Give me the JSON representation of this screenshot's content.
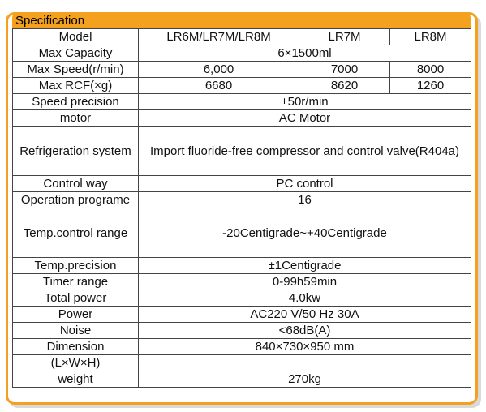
{
  "title": "Specification",
  "columns": [
    "Model",
    "LR6M/LR7M/LR8M",
    "LR7M",
    "LR8M"
  ],
  "rows": {
    "capacity": {
      "label": "Max Capacity",
      "value": "6×1500ml"
    },
    "speed": {
      "label": "Max Speed(r/min)",
      "v1": "6,000",
      "v2": "7000",
      "v3": "8000"
    },
    "rcf": {
      "label": "Max RCF(×g)",
      "v1": "6680",
      "v2": "8620",
      "v3": "1260"
    },
    "speed_precision": {
      "label": "Speed precision",
      "value": "±50r/min"
    },
    "motor": {
      "label": "motor",
      "value": "AC Motor"
    },
    "refrigeration": {
      "label": "Refrigeration system",
      "value": "Import fluoride-free compressor and control valve(R404a)"
    },
    "control": {
      "label": "Control way",
      "value": "PC control"
    },
    "programe": {
      "label": "Operation programe",
      "value": "16"
    },
    "temp_range": {
      "label": "Temp.control range",
      "value": "-20Centigrade~+40Centigrade"
    },
    "temp_precision": {
      "label": "Temp.precision",
      "value": "±1Centigrade"
    },
    "timer": {
      "label": "Timer range",
      "value": "0-99h59min"
    },
    "power_total": {
      "label": "Total power",
      "value": "4.0kw"
    },
    "power": {
      "label": "Power",
      "value": "AC220 V/50 Hz 30A"
    },
    "noise": {
      "label": "Noise",
      "value": "<68dB(A)"
    },
    "dimension": {
      "label": "Dimension",
      "label2": "(L×W×H)",
      "value": "840×730×950 mm"
    },
    "weight": {
      "label": "weight",
      "value": "270kg"
    }
  }
}
